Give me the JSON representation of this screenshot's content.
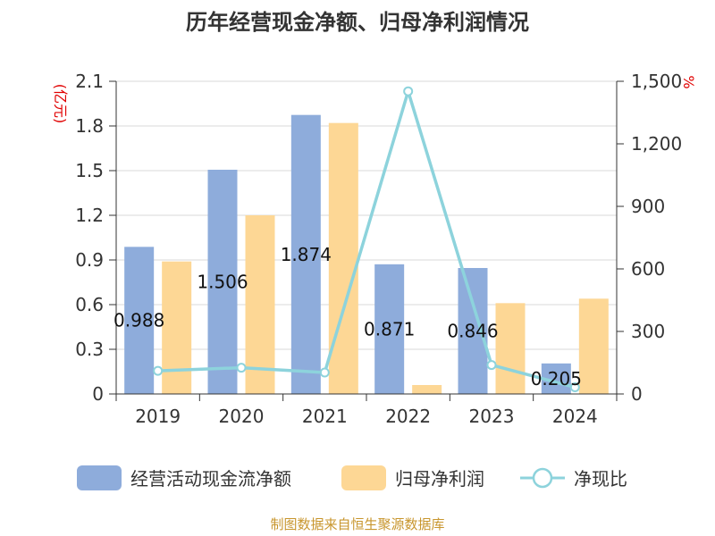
{
  "chart_data": {
    "type": "bar",
    "title": "历年经营现金净额、归母净利润情况",
    "categories": [
      "2019",
      "2020",
      "2021",
      "2022",
      "2023",
      "2024"
    ],
    "series": [
      {
        "name": "经营活动现金流净额",
        "type": "bar",
        "axis": "left",
        "color": "#8eacdb",
        "values": [
          0.988,
          1.506,
          1.874,
          0.871,
          0.846,
          0.205
        ],
        "labels": [
          "0.988",
          "1.506",
          "1.874",
          "0.871",
          "0.846",
          "0.205"
        ]
      },
      {
        "name": "归母净利润",
        "type": "bar",
        "axis": "left",
        "color": "#fdd795",
        "values": [
          0.89,
          1.2,
          1.82,
          0.06,
          0.61,
          0.64
        ]
      },
      {
        "name": "净现比",
        "type": "line",
        "axis": "right",
        "color": "#8dd3dc",
        "values": [
          111,
          126,
          103,
          1452,
          139,
          32
        ]
      }
    ],
    "y_left": {
      "unit": "(亿元)",
      "min": 0,
      "max": 2.1,
      "ticks": [
        "0",
        "0.3",
        "0.6",
        "0.9",
        "1.2",
        "1.5",
        "1.8",
        "2.1"
      ]
    },
    "y_right": {
      "unit": "%",
      "min": 0,
      "max": 1500,
      "ticks": [
        "0",
        "300",
        "600",
        "900",
        "1,200",
        "1,500"
      ]
    },
    "grid": true,
    "legend_position": "bottom",
    "unit_color": "#e00000",
    "source": "制图数据来自恒生聚源数据库",
    "source_color": "#c8962e"
  }
}
